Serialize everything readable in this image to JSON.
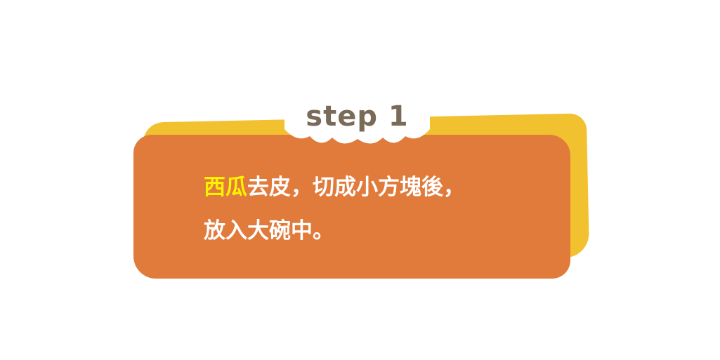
{
  "step": {
    "label": "step 1"
  },
  "instruction": {
    "highlight": "西瓜",
    "line1_rest": "去皮，切成小方塊後，",
    "line2": "放入大碗中。"
  },
  "colors": {
    "card": "#e07b3c",
    "card_shadow": "#f2c12f",
    "highlight": "#fff200",
    "step_text": "#7a6a58"
  }
}
